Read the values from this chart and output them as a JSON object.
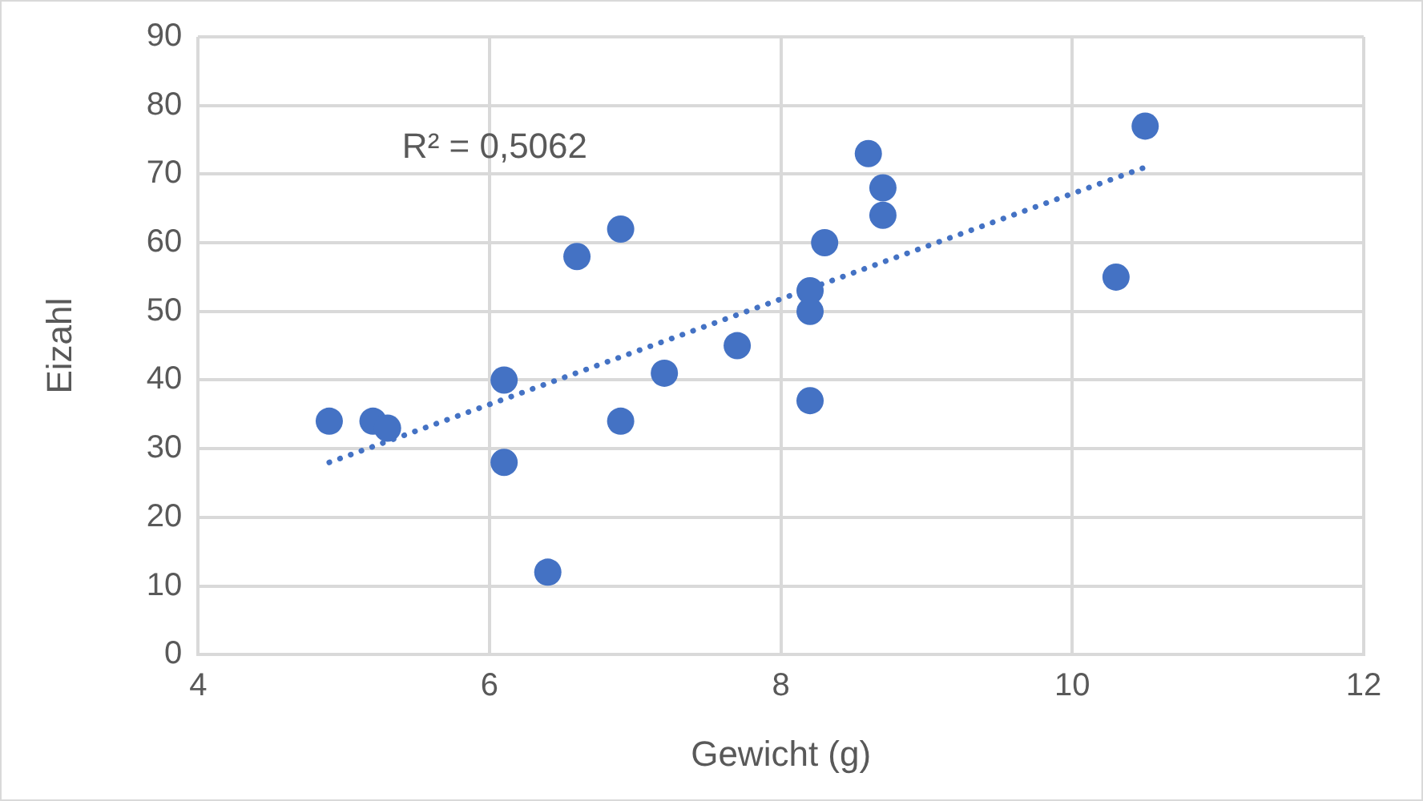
{
  "chart_data": {
    "type": "scatter",
    "xlabel": "Gewicht (g)",
    "ylabel": "Eizahl",
    "xlim": [
      4,
      12
    ],
    "xticks": [
      4,
      6,
      8,
      10,
      12
    ],
    "ylim": [
      0,
      90
    ],
    "yticks": [
      0,
      10,
      20,
      30,
      40,
      50,
      60,
      70,
      80,
      90
    ],
    "grid": true,
    "legend": false,
    "marker": "circle",
    "annotations": [
      "R² = 0,5062"
    ],
    "series": [
      {
        "type": "scatter",
        "color": "#4472c4",
        "x": [
          4.9,
          5.2,
          5.3,
          6.1,
          6.1,
          6.4,
          6.6,
          6.9,
          6.9,
          7.2,
          7.7,
          8.2,
          8.2,
          8.2,
          8.3,
          8.6,
          8.7,
          8.7,
          10.3,
          10.5
        ],
        "values": [
          34,
          34,
          33,
          40,
          28,
          12,
          58,
          62,
          34,
          41,
          45,
          37,
          50,
          53,
          60,
          73,
          68,
          64,
          55,
          77
        ]
      },
      {
        "type": "line",
        "color": "#4472c4",
        "line_style": "dotted",
        "marker": "none",
        "x": [
          4.9,
          10.5
        ],
        "values": [
          28,
          71
        ]
      }
    ]
  }
}
